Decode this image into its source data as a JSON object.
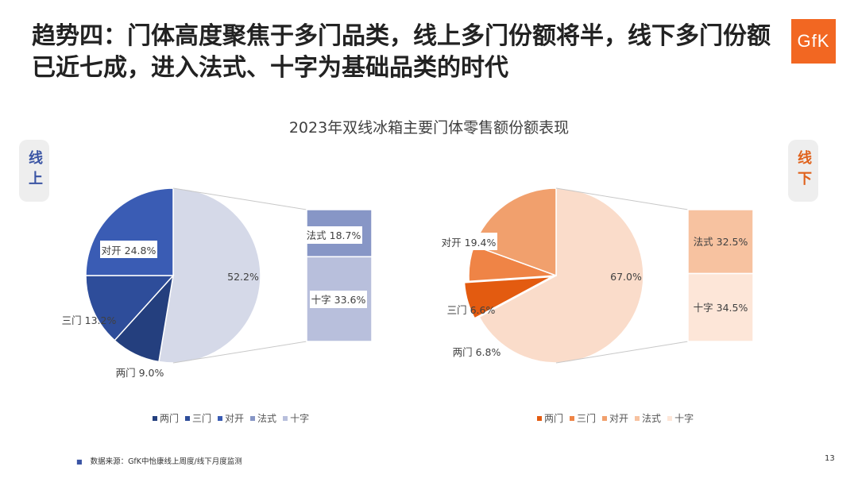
{
  "slide": {
    "title": "趋势四：门体高度聚焦于多门品类，线上多门份额将半，线下多门份额已近七成，进入法式、十字为基础品类的时代",
    "logo": "GfK",
    "tag_online": "线上",
    "tag_offline": "线下",
    "footer": "数据来源：GfK中怡康线上周度/线下月度监测",
    "page": "13"
  },
  "chart_data": [
    {
      "type": "pie",
      "title": "2023年双线冰箱主要门体零售额份额表现",
      "panel": "线上",
      "slices": [
        {
          "name": "两门",
          "value": 9.0,
          "label": "两门 9.0%",
          "color": "#243f7e"
        },
        {
          "name": "三门",
          "value": 13.2,
          "label": "三门 13.2%",
          "color": "#2e4d9a"
        },
        {
          "name": "对开",
          "value": 24.8,
          "label": "对开 24.8%",
          "color": "#3a5cb4"
        },
        {
          "name": "多门",
          "value": 52.2,
          "label": "52.2%",
          "color": "#d5d9e8"
        }
      ],
      "breakdown": [
        {
          "name": "法式",
          "value": 18.7,
          "label": "法式 18.7%",
          "color": "#8796c6"
        },
        {
          "name": "十字",
          "value": 33.6,
          "label": "十字 33.6%",
          "color": "#b8bfdc"
        }
      ],
      "legend": [
        {
          "name": "两门",
          "color": "#243f7e"
        },
        {
          "name": "三门",
          "color": "#2e4d9a"
        },
        {
          "name": "对开",
          "color": "#3a5cb4"
        },
        {
          "name": "法式",
          "color": "#8796c6"
        },
        {
          "name": "十字",
          "color": "#b8bfdc"
        }
      ]
    },
    {
      "type": "pie",
      "panel": "线下",
      "slices": [
        {
          "name": "两门",
          "value": 6.8,
          "label": "两门 6.8%",
          "color": "#e35b10"
        },
        {
          "name": "三门",
          "value": 6.6,
          "label": "三门 6.6%",
          "color": "#ef8446"
        },
        {
          "name": "对开",
          "value": 19.4,
          "label": "对开 19.4%",
          "color": "#f1a06d"
        },
        {
          "name": "多门",
          "value": 67.0,
          "label": "67.0%",
          "color": "#fadcca"
        }
      ],
      "breakdown": [
        {
          "name": "法式",
          "value": 32.5,
          "label": "法式 32.5%",
          "color": "#f7c2a0"
        },
        {
          "name": "十字",
          "value": 34.5,
          "label": "十字 34.5%",
          "color": "#fde6d8"
        }
      ],
      "legend": [
        {
          "name": "两门",
          "color": "#e35b10"
        },
        {
          "name": "三门",
          "color": "#ef8446"
        },
        {
          "name": "对开",
          "color": "#f1a06d"
        },
        {
          "name": "法式",
          "color": "#f7c2a0"
        },
        {
          "name": "十字",
          "color": "#fde6d8"
        }
      ]
    }
  ]
}
